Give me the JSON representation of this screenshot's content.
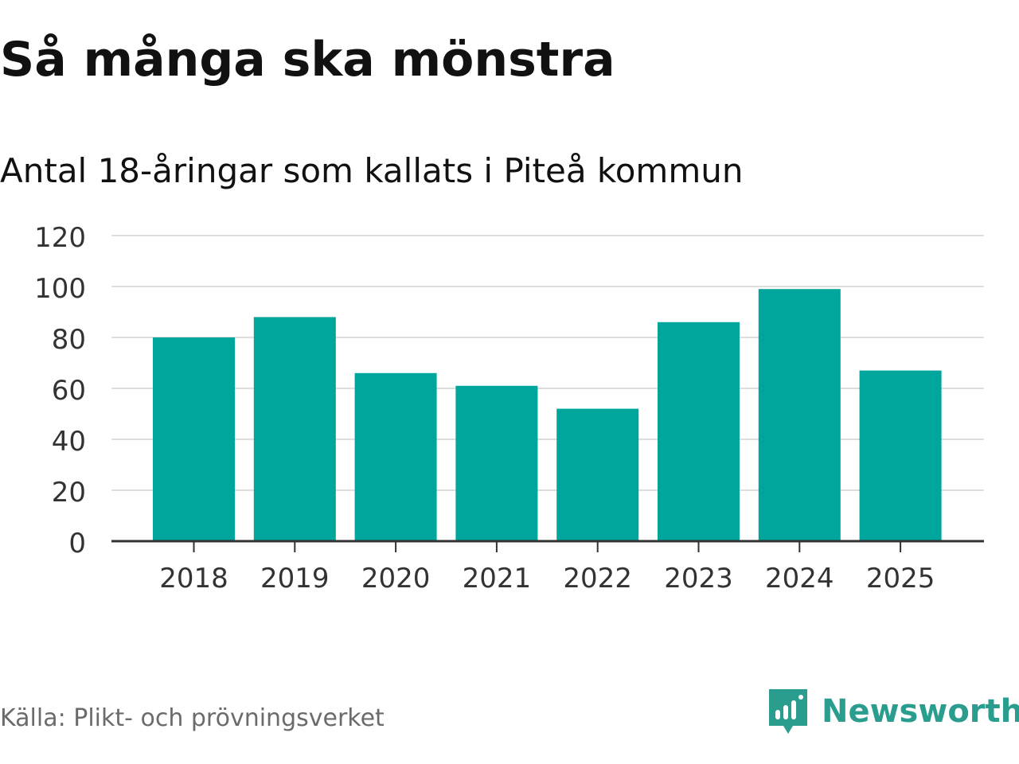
{
  "header": {
    "title": "Så många ska mönstra",
    "subtitle": "Antal 18-åringar som kallats i Piteå kommun"
  },
  "footer": {
    "source": "Källa: Plikt- och prövningsverket",
    "brand": "Newsworthy"
  },
  "colors": {
    "bar": "#00a59b",
    "grid": "#dddddd",
    "axis": "#333333",
    "brand": "#2a9d8f"
  },
  "chart_data": {
    "type": "bar",
    "categories": [
      "2018",
      "2019",
      "2020",
      "2021",
      "2022",
      "2023",
      "2024",
      "2025"
    ],
    "values": [
      80,
      88,
      66,
      61,
      52,
      86,
      99,
      67
    ],
    "yticks": [
      0,
      20,
      40,
      60,
      80,
      100,
      120
    ],
    "ylim": [
      0,
      120
    ],
    "grid": true,
    "xlabel": "",
    "ylabel": ""
  }
}
